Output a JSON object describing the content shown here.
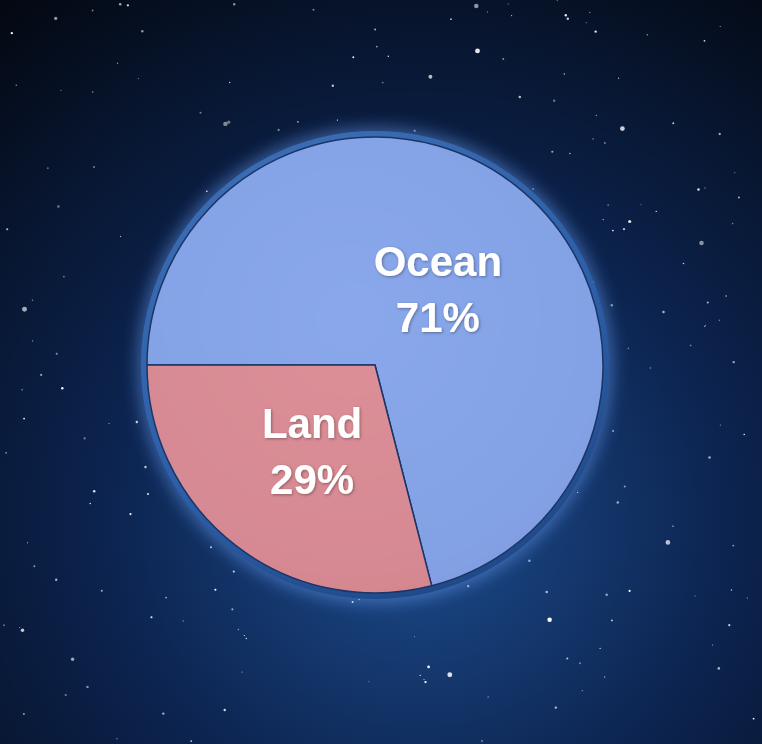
{
  "chart_data": {
    "type": "pie",
    "categories": [
      "Ocean",
      "Land"
    ],
    "values": [
      71,
      29
    ],
    "value_labels": [
      "71%",
      "29%"
    ],
    "colors": [
      "#8fabee",
      "#ee8f8f"
    ],
    "data_labels": true
  }
}
